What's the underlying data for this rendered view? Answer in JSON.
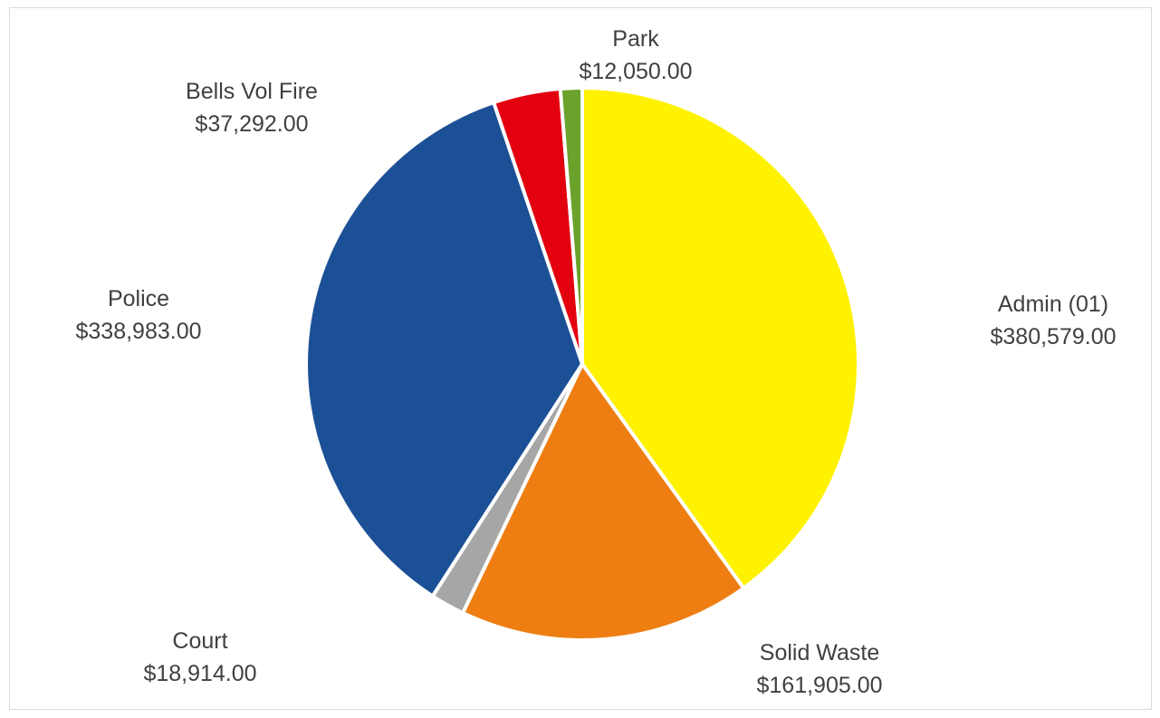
{
  "chart_data": {
    "type": "pie",
    "title": "",
    "start_angle_deg": 0,
    "direction": "clockwise",
    "slices": [
      {
        "name": "Admin (01)",
        "value": 380579.0,
        "value_label": "$380,579.00",
        "color": "#FFF200"
      },
      {
        "name": "Solid Waste",
        "value": 161905.0,
        "value_label": "$161,905.00",
        "color": "#EE7E12"
      },
      {
        "name": "Court",
        "value": 18914.0,
        "value_label": "$18,914.00",
        "color": "#A6A6A6"
      },
      {
        "name": "Police",
        "value": 338983.0,
        "value_label": "$338,983.00",
        "color": "#1C5096"
      },
      {
        "name": "Bells Vol Fire",
        "value": 37292.0,
        "value_label": "$37,292.00",
        "color": "#E3000F"
      },
      {
        "name": "Park",
        "value": 12050.0,
        "value_label": "$12,050.00",
        "color": "#6AA22B"
      }
    ]
  }
}
